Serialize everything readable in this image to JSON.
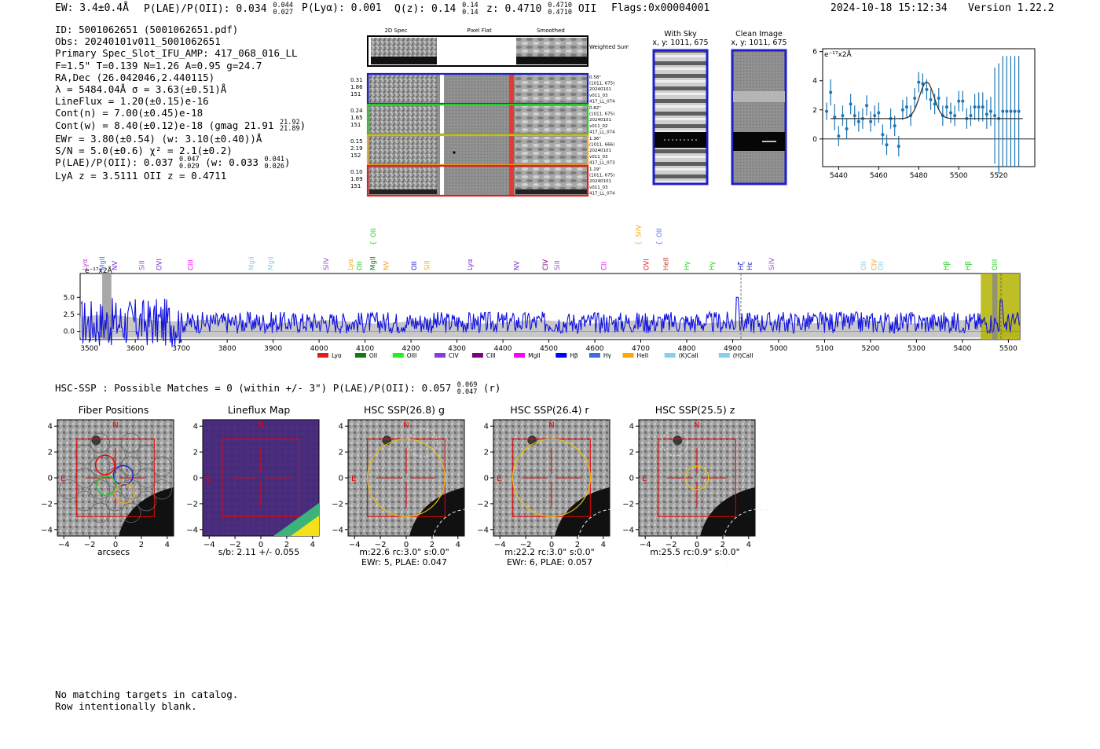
{
  "header": {
    "ew": "EW: 3.4±0.4Å",
    "plae_label": "P(LAE)/P(OII): 0.034",
    "plae_hi": "0.044",
    "plae_lo": "0.027",
    "plya": "P(Lyα): 0.001",
    "qz_label": "Q(z): 0.14",
    "qz_hi": "0.14",
    "qz_lo": "0.14",
    "z_label": "z: 0.4710",
    "z_hi": "0.4710",
    "z_lo": "0.4710",
    "z_line": "OII",
    "flags": "Flags:0x00004001",
    "timestamp": "2024-10-18 15:12:34",
    "version": "Version 1.22.2"
  },
  "info": {
    "id": "ID: 5001062651 (5001062651.pdf)",
    "obs": "Obs: 20240101v011_5001062651",
    "primary": "Primary Spec_Slot_IFU_AMP: 417_068_016_LL",
    "fit": "F=1.5\"  T=0.139  N=1.26  A=0.95  g=24.7",
    "radec": "RA,Dec (26.042046,2.440115)",
    "lambda": "λ = 5484.04Å   σ = 3.63(±0.51)Å",
    "lineflux": "LineFlux = 1.20(±0.15)e-16",
    "contn": "Cont(n) = 7.00(±0.45)e-18",
    "contw_label": "Cont(w) = 8.40(±0.12)e-18 (gmag 21.91",
    "contw_hi": "21.92",
    "contw_lo": "21.89",
    "ewr": "EWr = 3.80(±0.54)  (w: 3.10(±0.40))Å",
    "sn": "S/N = 5.0(±0.6)  χ² = 2.1(±0.2)",
    "plae_label": "P(LAE)/P(OII): 0.037",
    "plae_hi": "0.047",
    "plae_lo": "0.029",
    "plae_w_label": "(w: 0.033",
    "plae_w_hi": "0.041",
    "plae_w_lo": "0.026",
    "lya_z": "LyA z = 3.5111   OII z = 0.4711"
  },
  "cutouts": {
    "col_headers": [
      "2D Spec",
      "Pixel Flat",
      "Smoothed"
    ],
    "weighted_sum": "Weighted Sum",
    "rows": [
      {
        "left": [
          "0.31",
          "1.86",
          "151"
        ],
        "right": [
          "0.58\"",
          "(1011, 675)",
          "20240101",
          "v011_03",
          "417_LL_074"
        ],
        "color": "#1f1fcc"
      },
      {
        "left": [
          "0.24",
          "1.65",
          "151"
        ],
        "right": [
          "0.82\"",
          "(1011, 675)",
          "20240101",
          "v011_02",
          "417_LL_074"
        ],
        "color": "#22cc22"
      },
      {
        "left": [
          "0.15",
          "2.19",
          "152"
        ],
        "right": [
          "1.36\"",
          "(1011, 666)",
          "20240101",
          "v011_03",
          "417_LL_073"
        ],
        "color": "#f5a623"
      },
      {
        "left": [
          "0.10",
          "1.89",
          "151"
        ],
        "right": [
          "1.19\"",
          "(1011, 675)",
          "20240101",
          "v011_03",
          "417_LL_074"
        ],
        "color": "#e02020"
      }
    ]
  },
  "sky": {
    "with_sky_title": "With Sky",
    "with_sky_xy": "x, y: 1011, 675",
    "clean_title": "Clean Image",
    "clean_xy": "x, y: 1011, 675"
  },
  "zoom_chart": {
    "type": "scatter",
    "title": "",
    "unit_label": "e⁻¹⁷x2Å",
    "xlim": [
      5432,
      5538
    ],
    "ylim": [
      -1.9,
      6.2
    ],
    "xticks": [
      5440,
      5460,
      5480,
      5500,
      5520
    ],
    "yticks": [
      0,
      2,
      4,
      6
    ],
    "ytick_labels": [
      "0",
      "2",
      "4",
      "6"
    ],
    "model_continuum": 1.4,
    "model_peak": 2.5,
    "model_center": 5484.0,
    "model_sigma": 3.63,
    "x": [
      5434,
      5436,
      5438,
      5440,
      5442,
      5444,
      5446,
      5448,
      5450,
      5452,
      5454,
      5456,
      5458,
      5460,
      5462,
      5464,
      5466,
      5468,
      5470,
      5472,
      5474,
      5476,
      5478,
      5480,
      5482,
      5484,
      5486,
      5488,
      5490,
      5492,
      5494,
      5496,
      5498,
      5500,
      5502,
      5504,
      5506,
      5508,
      5510,
      5512,
      5514,
      5516,
      5518,
      5520,
      5522,
      5524,
      5526,
      5528,
      5530
    ],
    "y": [
      1.9,
      3.2,
      1.5,
      0.2,
      1.6,
      0.7,
      2.4,
      1.6,
      1.2,
      1.4,
      2.3,
      1.2,
      1.6,
      1.8,
      0.3,
      -0.4,
      1.4,
      0.9,
      -0.5,
      2.0,
      2.2,
      1.6,
      2.8,
      3.9,
      3.8,
      3.4,
      2.7,
      2.4,
      2.8,
      1.6,
      2.2,
      1.8,
      1.6,
      2.6,
      2.6,
      1.4,
      1.6,
      2.2,
      2.2,
      2.2,
      1.7,
      1.9,
      1.6,
      1.4,
      1.9,
      1.9,
      1.9,
      1.9,
      1.9
    ],
    "err": [
      0.6,
      0.9,
      0.9,
      0.7,
      0.7,
      0.7,
      0.7,
      0.7,
      0.7,
      0.7,
      0.7,
      0.7,
      0.7,
      0.7,
      0.7,
      0.7,
      0.7,
      0.7,
      0.7,
      0.7,
      0.7,
      0.7,
      0.7,
      0.7,
      0.7,
      0.7,
      0.7,
      0.7,
      0.7,
      0.7,
      0.7,
      0.7,
      0.7,
      0.7,
      0.7,
      0.7,
      0.7,
      0.9,
      1.0,
      1.0,
      1.0,
      1.0,
      3.3,
      3.8,
      3.8,
      3.8,
      3.8,
      3.8,
      3.8
    ]
  },
  "spectrum": {
    "type": "line",
    "unit_label": "e⁻¹⁷x2Å",
    "xlim": [
      3480,
      5525
    ],
    "ylim": [
      -1.2,
      8.5
    ],
    "xticks": [
      3500,
      3600,
      3700,
      3800,
      3900,
      4000,
      4100,
      4200,
      4300,
      4400,
      4500,
      4600,
      4700,
      4800,
      4900,
      5000,
      5100,
      5200,
      5300,
      5400,
      5500
    ],
    "yticks": [
      0.0,
      2.5,
      5.0
    ],
    "ytick_labels": [
      "0.0",
      "2.5",
      "5.0"
    ],
    "line_markers": [
      {
        "w": 3490,
        "label": "Lyα",
        "color": "#c23bd4",
        "row": 1,
        "bracket": true
      },
      {
        "w": 3528,
        "label": "MgII",
        "color": "#4c72f0",
        "row": 1,
        "bracket": false
      },
      {
        "w": 3555,
        "label": "NV",
        "color": "#7a2bd6",
        "row": 1,
        "bracket": true
      },
      {
        "w": 3614,
        "label": "SiII",
        "color": "#9b4dd4",
        "row": 1,
        "bracket": true
      },
      {
        "w": 3652,
        "label": "OVI",
        "color": "#7a2bd6",
        "row": 1,
        "bracket": true
      },
      {
        "w": 3720,
        "label": "CIII",
        "color": "#ff00ff",
        "row": 1,
        "bracket": true
      },
      {
        "w": 3853,
        "label": "MgII",
        "color": "#87ceeb",
        "row": 1,
        "bracket": false
      },
      {
        "w": 3895,
        "label": "MgII",
        "color": "#87ceeb",
        "row": 1,
        "bracket": false
      },
      {
        "w": 4015,
        "label": "SiIV",
        "color": "#9b4dd4",
        "row": 1,
        "bracket": true
      },
      {
        "w": 4068,
        "label": "Lyα",
        "color": "#f5a623",
        "row": 1,
        "bracket": true
      },
      {
        "w": 4088,
        "label": "OII",
        "color": "#22cc22",
        "row": 1,
        "bracket": true
      },
      {
        "w": 4117,
        "label": "MgII",
        "color": "#137a13",
        "row": 1,
        "bracket": true
      },
      {
        "w": 4146,
        "label": "NV",
        "color": "#f5a623",
        "row": 1,
        "bracket": true
      },
      {
        "w": 4207,
        "label": "OII",
        "color": "#2020cc",
        "row": 1,
        "bracket": true
      },
      {
        "w": 4235,
        "label": "SiII",
        "color": "#f5a623",
        "row": 1,
        "bracket": true
      },
      {
        "w": 4328,
        "label": "Lyα",
        "color": "#7a2bd6",
        "row": 1,
        "bracket": true
      },
      {
        "w": 4430,
        "label": "NV",
        "color": "#7a2bd6",
        "row": 1,
        "bracket": true
      },
      {
        "w": 4492,
        "label": "CIV",
        "color": "#800080",
        "row": 1,
        "bracket": true
      },
      {
        "w": 4518,
        "label": "SiII",
        "color": "#9b4dd4",
        "row": 1,
        "bracket": true
      },
      {
        "w": 4620,
        "label": "CII",
        "color": "#ff00ff",
        "row": 1,
        "bracket": true
      },
      {
        "w": 4712,
        "label": "OVI",
        "color": "#e02020",
        "row": 1,
        "bracket": true
      },
      {
        "w": 4755,
        "label": "HeII",
        "color": "#c0392b",
        "row": 1,
        "bracket": true
      },
      {
        "w": 4800,
        "label": "Hγ",
        "color": "#22cc22",
        "row": 1,
        "bracket": true
      },
      {
        "w": 4855,
        "label": "Hγ",
        "color": "#22cc22",
        "row": 1,
        "bracket": true
      },
      {
        "w": 4918,
        "label": "Hζ",
        "color": "#1f1fcc",
        "row": 1,
        "bracket": true
      },
      {
        "w": 4937,
        "label": "Hε",
        "color": "#1f1fcc",
        "row": 1,
        "bracket": true
      },
      {
        "w": 4985,
        "label": "SiIV",
        "color": "#9b4dd4",
        "row": 1,
        "bracket": true
      },
      {
        "w": 5185,
        "label": "OII",
        "color": "#87ceeb",
        "row": 1,
        "bracket": true
      },
      {
        "w": 5208,
        "label": "CIV",
        "color": "#f5a623",
        "row": 1,
        "bracket": true
      },
      {
        "w": 5222,
        "label": "OII",
        "color": "#87ceeb",
        "row": 1,
        "bracket": true
      },
      {
        "w": 5365,
        "label": "Hβ",
        "color": "#22cc22",
        "row": 1,
        "bracket": true
      },
      {
        "w": 5412,
        "label": "Hβ",
        "color": "#22cc22",
        "row": 1,
        "bracket": true
      },
      {
        "w": 5470,
        "label": "OIII",
        "color": "#22cc22",
        "row": 1,
        "bracket": true
      },
      {
        "w": 4118,
        "label": "OII",
        "color": "#22cc22",
        "row": 0,
        "bracket": true
      },
      {
        "w": 4695,
        "label": "SiIV",
        "color": "#f5a623",
        "row": 0,
        "bracket": true
      },
      {
        "w": 4740,
        "label": "OII",
        "color": "#4c72f0",
        "row": 0,
        "bracket": true
      }
    ],
    "legend": [
      {
        "label": "Lyα",
        "color": "#e02020"
      },
      {
        "label": "OII",
        "color": "#137a13"
      },
      {
        "label": "OIII",
        "color": "#22ee22"
      },
      {
        "label": "CIV",
        "color": "#8a3be0"
      },
      {
        "label": "CIII",
        "color": "#800080"
      },
      {
        "label": "MgII",
        "color": "#ff00ff"
      },
      {
        "label": "Hβ",
        "color": "#0000ff"
      },
      {
        "label": "Hγ",
        "color": "#4169e1"
      },
      {
        "label": "HeII",
        "color": "#ffa500"
      },
      {
        "label": "(K)CaII",
        "color": "#87ceeb"
      },
      {
        "label": "(H)CaII",
        "color": "#87ceeb"
      }
    ]
  },
  "hsc": {
    "summary_label": "HSC-SSP : Possible Matches = 0 (within +/- 3\")  P(LAE)/P(OII): 0.057",
    "summary_hi": "0.069",
    "summary_lo": "0.047",
    "summary_band": "(r)",
    "axis_ticks": [
      "4",
      "2",
      "0",
      "−2",
      "−4"
    ],
    "x_ticks": [
      "−4",
      "−2",
      "0",
      "2",
      "4"
    ],
    "n_label": "N",
    "e_label": "E",
    "panels": [
      {
        "title": "Fiber Positions",
        "cap1": "arcsecs",
        "cap2": ""
      },
      {
        "title": "Lineflux Map",
        "cap1": "s/b: 2.11 +/- 0.055",
        "cap2": ""
      },
      {
        "title": "HSC SSP(26.8) g",
        "cap1": "m:22.6 rc:3.0\"  s:0.0\"",
        "cap2": "EWr: 5, PLAE: 0.047"
      },
      {
        "title": "HSC SSP(26.4) r",
        "cap1": "m:22.2 rc:3.0\"  s:0.0\"",
        "cap2": "EWr: 6, PLAE: 0.057"
      },
      {
        "title": "HSC SSP(25.5) z",
        "cap1": "m:25.5 rc:0.9\"  s:0.0\"",
        "cap2": ""
      }
    ]
  },
  "footer": {
    "line1": "No matching targets in catalog.",
    "line2": "Row intentionally blank."
  }
}
